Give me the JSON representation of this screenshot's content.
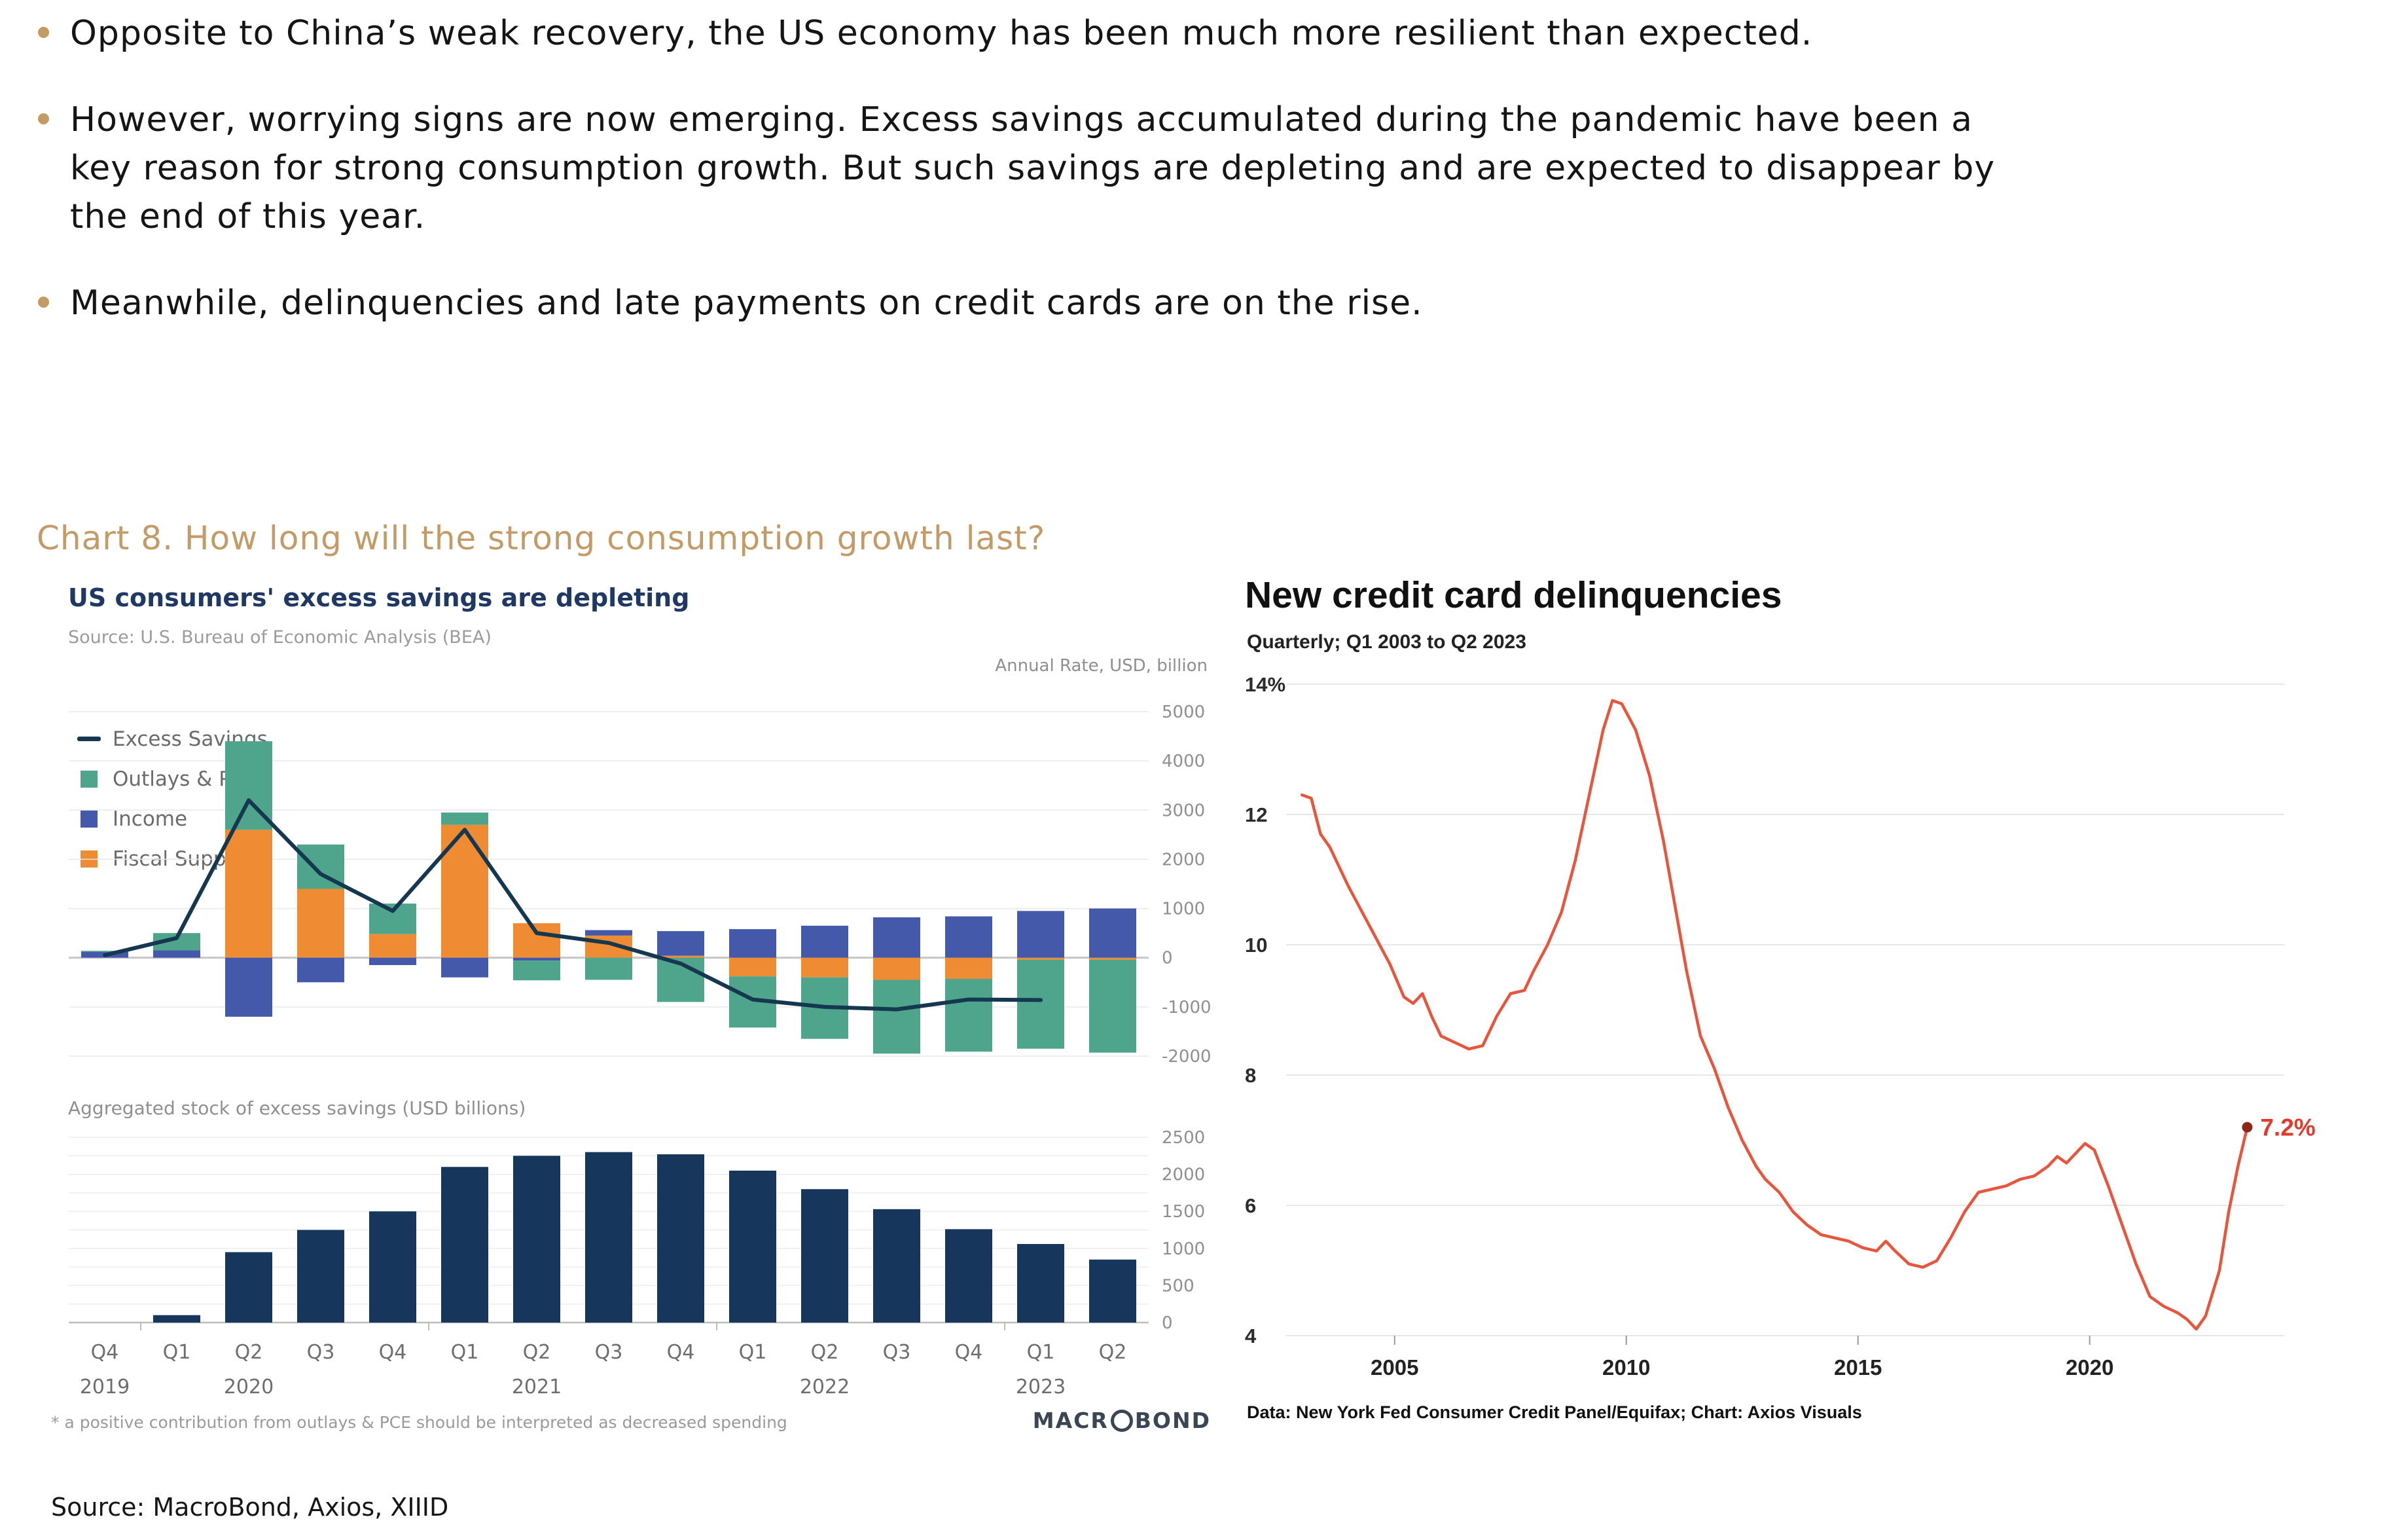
{
  "page": {
    "background": "#FFFFFF",
    "source_note": "Source: MacroBond, Axios, XIIID"
  },
  "bullets": {
    "dot_color": "#C49B63",
    "text_color": "#151515",
    "items": [
      {
        "lines": [
          "Opposite to China’s weak recovery, the US economy has been much more resilient than expected."
        ]
      },
      {
        "lines": [
          "However, worrying signs are now emerging. Excess savings accumulated during the pandemic have been a",
          "key reason for strong consumption growth. But such savings are depleting and are expected to disappear by",
          "the end of this year."
        ]
      },
      {
        "lines": [
          "Meanwhile, delinquencies and late payments on credit cards are on the rise."
        ]
      }
    ]
  },
  "section_title": {
    "text": "Chart 8. How long will the strong consumption growth last?",
    "color": "#C49A66"
  },
  "macrobond_chart": {
    "title": "US consumers' excess savings are depleting",
    "title_color": "#1F3864",
    "source": "Source: U.S. Bureau of Economic Analysis (BEA)",
    "axis_note": "Annual Rate, USD, billion",
    "legend": [
      {
        "label": "Excess Savings",
        "marker": "line",
        "color": "#15374F"
      },
      {
        "label": "Outlays & PCE*",
        "marker": "square",
        "color": "#4FA58C"
      },
      {
        "label": "Income",
        "marker": "square",
        "color": "#4459A9"
      },
      {
        "label": "Fiscal Support",
        "marker": "square",
        "color": "#EE8B33"
      }
    ],
    "subtitle_bottom": "Aggregated stock of excess savings (USD billions)",
    "footnote": "* a positive contribution from outlays & PCE should be interpreted as decreased spending",
    "logo_text_left": "MACR",
    "logo_text_right": "BOND"
  },
  "axios_chart": {
    "title": "New credit card delinquencies",
    "subtitle": "Quarterly; Q1 2003 to Q2 2023",
    "footer": "Data: New York Fed Consumer Credit Panel/Equifax; Chart: Axios Visuals",
    "line_color": "#E8543C",
    "label_color": "#E23A2B",
    "dot_color": "#8E2519"
  },
  "chart_data": [
    {
      "type": "bar",
      "subtype": "stacked-with-line",
      "title": "US consumers' excess savings are depleting",
      "ylabel": "Annual Rate, USD, billion",
      "ylim": [
        -2000,
        5000
      ],
      "yticks": [
        5000,
        4000,
        3000,
        2000,
        1000,
        0,
        -1000,
        -2000
      ],
      "categories": [
        "Q4 2019",
        "Q1 2020",
        "Q2 2020",
        "Q3 2020",
        "Q4 2020",
        "Q1 2021",
        "Q2 2021",
        "Q3 2021",
        "Q4 2021",
        "Q1 2022",
        "Q2 2022",
        "Q3 2022",
        "Q4 2022",
        "Q1 2023",
        "Q2 2023"
      ],
      "series": [
        {
          "name": "Fiscal Support",
          "color": "#EE8B33",
          "values": [
            0,
            0,
            2600,
            1400,
            480,
            2700,
            700,
            450,
            40,
            -380,
            -400,
            -450,
            -430,
            -40,
            -40
          ]
        },
        {
          "name": "Income",
          "color": "#4459A9",
          "values": [
            120,
            150,
            -1200,
            -500,
            -150,
            -400,
            -60,
            110,
            500,
            580,
            650,
            820,
            840,
            950,
            1000
          ]
        },
        {
          "name": "Outlays & PCE*",
          "color": "#4FA58C",
          "values": [
            20,
            350,
            1800,
            900,
            620,
            250,
            -400,
            -450,
            -900,
            -1040,
            -1250,
            -1500,
            -1480,
            -1810,
            -1890
          ]
        }
      ],
      "line_series": {
        "name": "Excess Savings",
        "color": "#15374F",
        "values": [
          50,
          400,
          3200,
          1700,
          950,
          2600,
          500,
          300,
          -120,
          -850,
          -1000,
          -1050,
          -850,
          -860,
          null
        ]
      },
      "xtick_labels": [
        "Q4",
        "Q1",
        "Q2",
        "Q3",
        "Q4",
        "Q1",
        "Q2",
        "Q3",
        "Q4",
        "Q1",
        "Q2",
        "Q3",
        "Q4",
        "Q1",
        "Q2"
      ],
      "year_labels": [
        {
          "text": "2019",
          "index": 0
        },
        {
          "text": "2020",
          "index": 2
        },
        {
          "text": "2021",
          "index": 6
        },
        {
          "text": "2022",
          "index": 10
        },
        {
          "text": "2023",
          "index": 13
        }
      ],
      "year_boundary_ticks": [
        1,
        5,
        9,
        13
      ]
    },
    {
      "type": "bar",
      "title": "Aggregated stock of excess savings (USD billions)",
      "bar_color": "#17365C",
      "ylim": [
        0,
        2500
      ],
      "yticks": [
        0,
        500,
        1000,
        1500,
        2000,
        2500
      ],
      "grid_step": 250,
      "categories": [
        "Q4 2019",
        "Q1 2020",
        "Q2 2020",
        "Q3 2020",
        "Q4 2020",
        "Q1 2021",
        "Q2 2021",
        "Q3 2021",
        "Q4 2021",
        "Q1 2022",
        "Q2 2022",
        "Q3 2022",
        "Q4 2022",
        "Q1 2023",
        "Q2 2023"
      ],
      "values": [
        0,
        100,
        950,
        1250,
        1500,
        2100,
        2250,
        2300,
        2270,
        2050,
        1800,
        1530,
        1260,
        1060,
        850
      ]
    },
    {
      "type": "line",
      "title": "New credit card delinquencies",
      "xlim": [
        2002.8,
        2024.2
      ],
      "ylim": [
        4,
        14
      ],
      "yticks": [
        14,
        12,
        10,
        8,
        6,
        4
      ],
      "ytick_labels": [
        "14%",
        "12",
        "10",
        "8",
        "6",
        "4"
      ],
      "xticks": [
        2005,
        2010,
        2015,
        2020
      ],
      "end_label": "7.2%",
      "x": [
        2003.0,
        2003.2,
        2003.4,
        2003.6,
        2003.8,
        2004.0,
        2004.3,
        2004.6,
        2004.9,
        2005.2,
        2005.4,
        2005.6,
        2005.8,
        2006.0,
        2006.3,
        2006.6,
        2006.9,
        2007.2,
        2007.5,
        2007.8,
        2008.0,
        2008.3,
        2008.6,
        2008.9,
        2009.2,
        2009.5,
        2009.7,
        2009.9,
        2010.2,
        2010.5,
        2010.8,
        2011.0,
        2011.3,
        2011.6,
        2011.9,
        2012.2,
        2012.5,
        2012.8,
        2013.0,
        2013.3,
        2013.6,
        2013.9,
        2014.2,
        2014.5,
        2014.8,
        2015.1,
        2015.4,
        2015.6,
        2015.8,
        2016.1,
        2016.4,
        2016.7,
        2017.0,
        2017.3,
        2017.6,
        2017.9,
        2018.2,
        2018.5,
        2018.8,
        2019.1,
        2019.3,
        2019.5,
        2019.7,
        2019.9,
        2020.1,
        2020.4,
        2020.7,
        2021.0,
        2021.3,
        2021.6,
        2021.9,
        2022.1,
        2022.3,
        2022.5,
        2022.8,
        2023.0,
        2023.2,
        2023.4
      ],
      "y": [
        12.3,
        12.25,
        11.7,
        11.5,
        11.2,
        10.9,
        10.5,
        10.1,
        9.7,
        9.2,
        9.1,
        9.25,
        8.9,
        8.6,
        8.5,
        8.4,
        8.45,
        8.9,
        9.25,
        9.3,
        9.6,
        10.0,
        10.5,
        11.3,
        12.3,
        13.3,
        13.75,
        13.7,
        13.3,
        12.6,
        11.6,
        10.8,
        9.6,
        8.6,
        8.1,
        7.5,
        7.0,
        6.6,
        6.4,
        6.2,
        5.9,
        5.7,
        5.55,
        5.5,
        5.45,
        5.35,
        5.3,
        5.45,
        5.3,
        5.1,
        5.05,
        5.15,
        5.5,
        5.9,
        6.2,
        6.25,
        6.3,
        6.4,
        6.45,
        6.6,
        6.75,
        6.65,
        6.8,
        6.95,
        6.85,
        6.3,
        5.7,
        5.1,
        4.6,
        4.45,
        4.35,
        4.25,
        4.1,
        4.3,
        5.0,
        5.9,
        6.6,
        7.2
      ]
    }
  ]
}
